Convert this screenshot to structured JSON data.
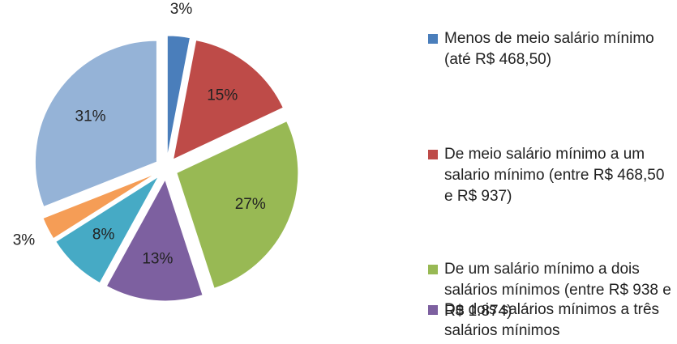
{
  "chart_data": {
    "type": "pie",
    "categories": [
      "Menos de meio salário mínimo (até R$ 468,50)",
      "De meio salário mínimo a um salario mínimo (entre R$ 468,50 e R$ 937)",
      "De um salário mínimo a dois salários mínimos (entre R$ 938 e R$ 1.874)",
      "De dois salários mínimos a três salários mínimos",
      null,
      null,
      null
    ],
    "values": [
      3,
      15,
      27,
      13,
      8,
      3,
      31
    ],
    "value_labels": [
      "3%",
      "15%",
      "27%",
      "13%",
      "8%",
      "3%",
      "31%"
    ],
    "colors": [
      "#4a7ebb",
      "#be4b48",
      "#98b954",
      "#7d60a0",
      "#46aac5",
      "#f59d56",
      "#95b3d7"
    ]
  }
}
